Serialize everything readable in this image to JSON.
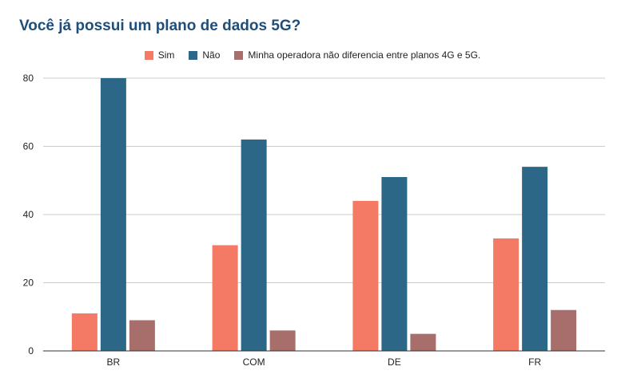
{
  "chart_data": {
    "type": "bar",
    "title": "Você já possui um plano de dados 5G?",
    "categories": [
      "BR",
      "COM",
      "DE",
      "FR"
    ],
    "series": [
      {
        "name": "Sim",
        "color": "#f47a66",
        "values": [
          11,
          31,
          44,
          33
        ]
      },
      {
        "name": "Não",
        "color": "#2c6787",
        "values": [
          80,
          62,
          51,
          54
        ]
      },
      {
        "name": "Minha operadora não diferencia entre planos 4G e 5G.",
        "color": "#a86e6c",
        "values": [
          9,
          6,
          5,
          12
        ]
      }
    ],
    "ylim": [
      0,
      80
    ],
    "yticks": [
      0,
      20,
      40,
      60,
      80
    ],
    "grid": true,
    "legend": "top-center"
  }
}
